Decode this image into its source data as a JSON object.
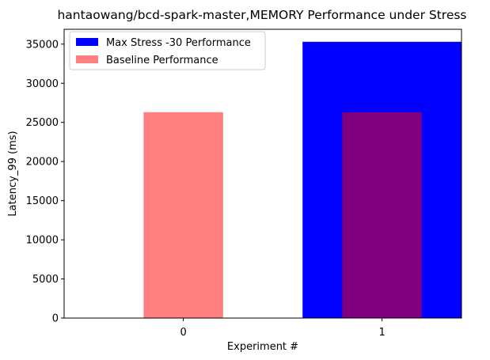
{
  "chart_data": {
    "type": "bar",
    "title": "hantaowang/bcd-spark-master,MEMORY Performance under Stress",
    "xlabel": "Experiment #",
    "ylabel": "Latency_99 (ms)",
    "categories": [
      "0",
      "1"
    ],
    "ylim": [
      0,
      36900
    ],
    "yticks": [
      0,
      5000,
      10000,
      15000,
      20000,
      25000,
      30000,
      35000
    ],
    "grid": false,
    "legend_position": "top-left",
    "series": [
      {
        "name": "Max Stress -30 Performance",
        "color": "#0000ff",
        "values": [
          null,
          35300
        ]
      },
      {
        "name": "Baseline Performance",
        "color": "#ff0000",
        "opacity": 0.5,
        "values": [
          26300,
          26300
        ]
      }
    ]
  }
}
